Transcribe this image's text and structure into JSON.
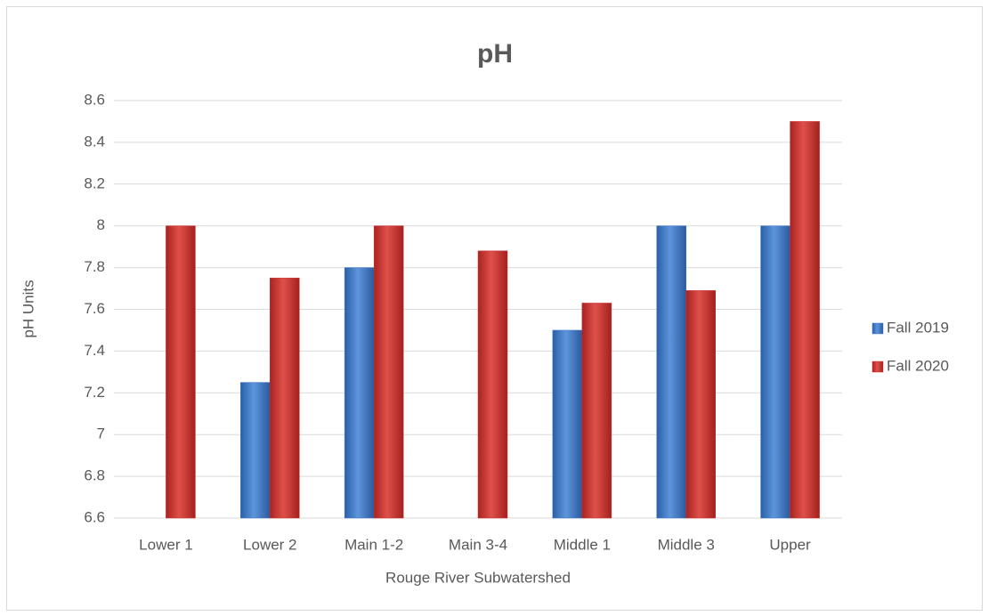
{
  "chart_data": {
    "type": "bar",
    "title": "pH",
    "x_label": "Rouge River Subwatershed",
    "y_label": "pH Units",
    "categories": [
      "Lower 1",
      "Lower 2",
      "Main 1-2",
      "Main 3-4",
      "Middle 1",
      "Middle 3",
      "Upper"
    ],
    "series": [
      {
        "name": "Fall 2019",
        "color": "#3f78c4",
        "values": [
          null,
          7.25,
          7.8,
          null,
          7.5,
          8.0,
          8.0
        ]
      },
      {
        "name": "Fall 2020",
        "color": "#c9302c",
        "values": [
          8.0,
          7.75,
          8.0,
          7.88,
          7.63,
          7.69,
          8.5
        ]
      }
    ],
    "ylim": [
      6.6,
      8.6
    ],
    "yticks": [
      6.6,
      6.8,
      7,
      7.2,
      7.4,
      7.6,
      7.8,
      8,
      8.2,
      8.4,
      8.6
    ],
    "grid": true,
    "legend": "right"
  }
}
